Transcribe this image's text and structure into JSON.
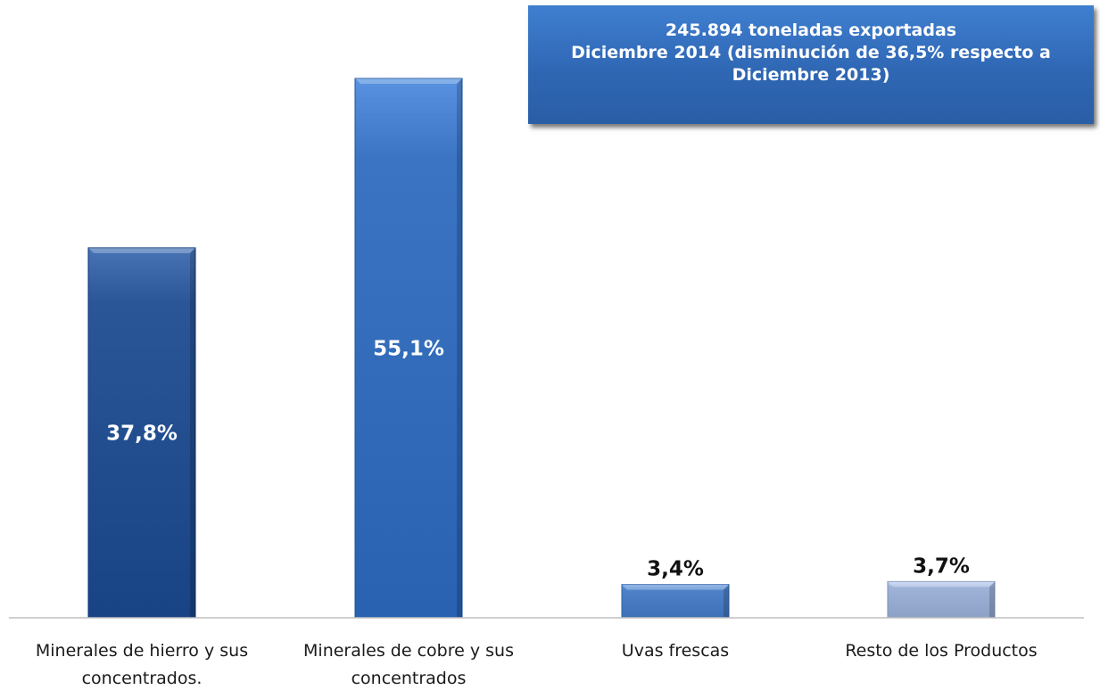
{
  "info_box": {
    "line1": "245.894 toneladas exportadas",
    "line2": "Diciembre 2014  (disminución de 36,5% respecto a",
    "line3": "Diciembre 2013)"
  },
  "chart_data": {
    "type": "bar",
    "categories": [
      [
        "Minerales de hierro y sus",
        "concentrados."
      ],
      [
        "Minerales de cobre y sus",
        "concentrados"
      ],
      [
        "Uvas frescas"
      ],
      [
        "Resto de los Productos"
      ]
    ],
    "values": [
      37.8,
      55.1,
      3.4,
      3.7
    ],
    "data_labels": [
      "37,8%",
      "55,1%",
      "3,4%",
      "3,7%"
    ],
    "ylim": [
      0,
      55.1
    ],
    "colors": [
      "#2a5698",
      "#3a74c2",
      "#4f82c8",
      "#9fb3d9"
    ],
    "label_inside": [
      true,
      true,
      false,
      false
    ],
    "grid": false,
    "legend": "none"
  }
}
